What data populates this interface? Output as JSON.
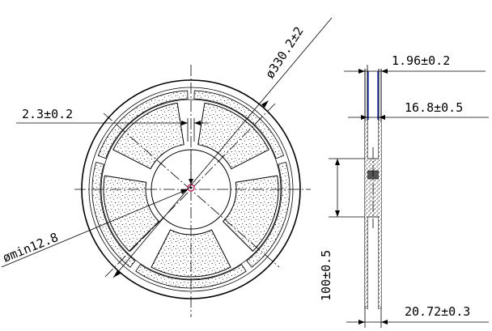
{
  "labels": {
    "diameter": "ø330.2±2",
    "hub_width": "2.3±0.2",
    "arbor_hole": "ømin12.8",
    "flange_thickness": "1.96±0.2",
    "tape_width": "16.8±0.5",
    "hub_diameter": "100±0.5",
    "overall_width": "20.72±0.3"
  },
  "colors": {
    "line": "#000000",
    "accent_blue": "#1a2fb0",
    "hub_mark": "#c21e5c"
  }
}
